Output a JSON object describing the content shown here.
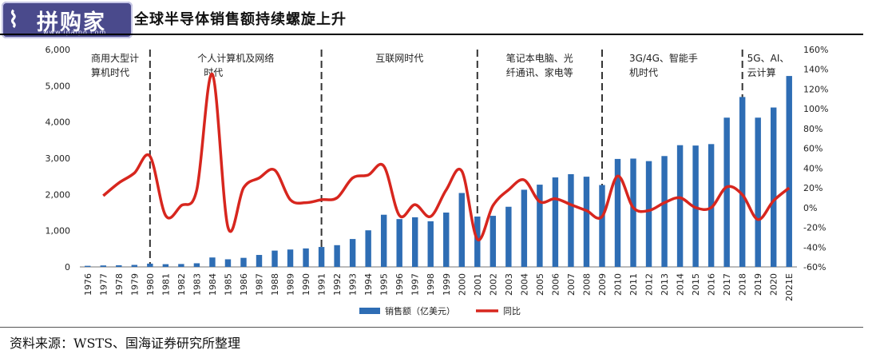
{
  "header": {
    "logo_text": "拼购家",
    "logo_url": "www.ipaipo.com",
    "title": "全球半导体销售额持续螺旋上升"
  },
  "footer": {
    "source": "资料来源：WSTS、国海证券研究所整理"
  },
  "colors": {
    "bar": "#2e6db4",
    "line": "#d7261e",
    "divider": "#333333",
    "logo_bg": "#4a4a8c"
  },
  "chart_data": {
    "type": "bar",
    "categories": [
      "1976",
      "1977",
      "1978",
      "1979",
      "1980",
      "1981",
      "1982",
      "1983",
      "1984",
      "1985",
      "1986",
      "1987",
      "1988",
      "1989",
      "1990",
      "1991",
      "1992",
      "1993",
      "1994",
      "1995",
      "1996",
      "1997",
      "1998",
      "1999",
      "2000",
      "2001",
      "2002",
      "2003",
      "2004",
      "2005",
      "2006",
      "2007",
      "2008",
      "2009",
      "2010",
      "2011",
      "2012",
      "2013",
      "2014",
      "2015",
      "2016",
      "2017",
      "2018",
      "2019",
      "2020",
      "2021E"
    ],
    "series": [
      {
        "name": "销售额（亿美元）",
        "type": "bar",
        "axis": "left",
        "values": [
          30,
          40,
          45,
          55,
          90,
          75,
          80,
          100,
          260,
          210,
          250,
          330,
          450,
          480,
          510,
          550,
          600,
          770,
          1010,
          1440,
          1320,
          1370,
          1260,
          1500,
          2040,
          1390,
          1410,
          1660,
          2130,
          2270,
          2470,
          2560,
          2490,
          2260,
          2980,
          2990,
          2920,
          3060,
          3360,
          3350,
          3390,
          4120,
          4690,
          4120,
          4400,
          5270
        ]
      },
      {
        "name": "同比",
        "type": "line",
        "axis": "right",
        "unit": "%",
        "values": [
          null,
          12,
          25,
          35,
          52,
          -8,
          2,
          18,
          135,
          -20,
          20,
          30,
          38,
          8,
          5,
          8,
          10,
          30,
          33,
          42,
          -8,
          3,
          -9,
          18,
          37,
          -32,
          2,
          18,
          28,
          6,
          9,
          3,
          -3,
          -9,
          32,
          0,
          -3,
          5,
          10,
          0,
          0,
          21,
          13,
          -12,
          7,
          20
        ]
      }
    ],
    "ylim_left": [
      0,
      6000
    ],
    "yticks_left": [
      "0",
      "1,000",
      "2,000",
      "3,000",
      "4,000",
      "5,000",
      "6,000"
    ],
    "ylim_right": [
      -60,
      160
    ],
    "yticks_right": [
      "-60%",
      "-40%",
      "-20%",
      "0%",
      "20%",
      "40%",
      "60%",
      "80%",
      "100%",
      "120%",
      "140%",
      "160%"
    ],
    "eras": [
      {
        "label_lines": [
          "商用大型计",
          "算机时代"
        ],
        "start": "1976",
        "end": "1980"
      },
      {
        "label_lines": [
          "个人计算机及网络",
          "时代"
        ],
        "start": "1980",
        "end": "1991"
      },
      {
        "label_lines": [
          "互联网时代"
        ],
        "start": "1991",
        "end": "2001"
      },
      {
        "label_lines": [
          "笔记本电脑、光",
          "纤通讯、家电等"
        ],
        "start": "2001",
        "end": "2009"
      },
      {
        "label_lines": [
          "3G/4G、智能手",
          "机时代"
        ],
        "start": "2009",
        "end": "2018"
      },
      {
        "label_lines": [
          "5G、AI、",
          "云计算"
        ],
        "start": "2018",
        "end": "2021E"
      }
    ],
    "dividers_after": [
      "1980",
      "1991",
      "2001",
      "2009",
      "2018"
    ],
    "legend": {
      "position": "bottom-center",
      "items": [
        "销售额（亿美元）",
        "同比"
      ]
    }
  }
}
